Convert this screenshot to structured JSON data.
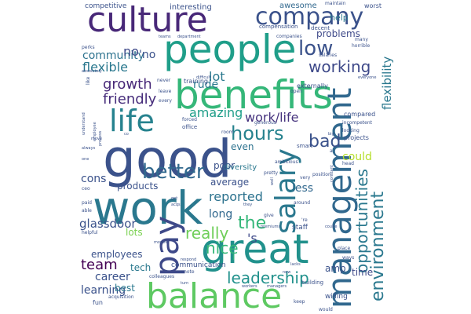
{
  "words": [
    {
      "text": "good",
      "weight": 1.0,
      "color": "#3b528b"
    },
    {
      "text": "work",
      "weight": 0.92,
      "color": "#2a788e"
    },
    {
      "text": "benefits",
      "weight": 0.9,
      "color": "#35b779"
    },
    {
      "text": "people",
      "weight": 0.85,
      "color": "#1f9e89"
    },
    {
      "text": "great",
      "weight": 0.85,
      "color": "#21918c"
    },
    {
      "text": "balance",
      "weight": 0.8,
      "color": "#5ec962"
    },
    {
      "text": "culture",
      "weight": 0.75,
      "color": "#482878"
    },
    {
      "text": "management",
      "weight": 0.78,
      "color": "#31688e"
    },
    {
      "text": "pay",
      "weight": 0.7,
      "color": "#3e4989"
    },
    {
      "text": "life",
      "weight": 0.65,
      "color": "#26828e"
    },
    {
      "text": "salary",
      "weight": 0.6,
      "color": "#2a788e"
    },
    {
      "text": "company",
      "weight": 0.55,
      "color": "#3b528b"
    },
    {
      "text": "better",
      "weight": 0.45,
      "color": "#31688e"
    },
    {
      "text": "environment",
      "weight": 0.42,
      "color": "#2a788e"
    },
    {
      "text": "low",
      "weight": 0.45,
      "color": "#3b528b"
    },
    {
      "text": "hours",
      "weight": 0.42,
      "color": "#26828e"
    },
    {
      "text": "opportunities",
      "weight": 0.38,
      "color": "#2a788e"
    },
    {
      "text": "bad",
      "weight": 0.35,
      "color": "#3b528b"
    },
    {
      "text": "leadership",
      "weight": 0.33,
      "color": "#21918c"
    },
    {
      "text": "the",
      "weight": 0.33,
      "color": "#35b779"
    },
    {
      "text": "really",
      "weight": 0.32,
      "color": "#6ece58"
    },
    {
      "text": "flexible",
      "weight": 0.3,
      "color": "#2a788e"
    },
    {
      "text": "growth",
      "weight": 0.3,
      "color": "#482878"
    },
    {
      "text": "working",
      "weight": 0.3,
      "color": "#3e4989"
    },
    {
      "text": "work/life",
      "weight": 0.28,
      "color": "#46337e"
    },
    {
      "text": "friendly",
      "weight": 0.28,
      "color": "#472d7b"
    },
    {
      "text": "nice",
      "weight": 0.28,
      "color": "#35b779"
    },
    {
      "text": "team",
      "weight": 0.28,
      "color": "#440154"
    },
    {
      "text": "reported",
      "weight": 0.27,
      "color": "#2c728e"
    },
    {
      "text": "amazing",
      "weight": 0.26,
      "color": "#1f9e89"
    },
    {
      "text": "flexibility",
      "weight": 0.26,
      "color": "#2a788e"
    },
    {
      "text": "career",
      "weight": 0.25,
      "color": "#3b528b"
    },
    {
      "text": "glassdoor",
      "weight": 0.25,
      "color": "#3b528b"
    },
    {
      "text": "community",
      "weight": 0.24,
      "color": "#2c728e"
    },
    {
      "text": "cons",
      "weight": 0.24,
      "color": "#3b528b"
    },
    {
      "text": "could",
      "weight": 0.22,
      "color": "#b5de2b"
    },
    {
      "text": "no",
      "weight": 0.22,
      "color": "#3e4989"
    },
    {
      "text": "lot",
      "weight": 0.22,
      "color": "#2a788e"
    },
    {
      "text": "long",
      "weight": 0.22,
      "color": "#31688e"
    },
    {
      "text": "learning",
      "weight": 0.21,
      "color": "#3b528b"
    },
    {
      "text": "employees",
      "weight": 0.2,
      "color": "#3b528b"
    },
    {
      "text": "'s",
      "weight": 0.22,
      "color": "#3e4989"
    },
    {
      "text": "less",
      "weight": 0.2,
      "color": "#31688e"
    },
    {
      "text": "time",
      "weight": 0.19,
      "color": "#3e4989"
    },
    {
      "text": "rude",
      "weight": 0.19,
      "color": "#2a788e"
    },
    {
      "text": "even",
      "weight": 0.19,
      "color": "#2c728e"
    },
    {
      "text": "poor",
      "weight": 0.19,
      "color": "#3b528b"
    },
    {
      "text": "'no",
      "weight": 0.19,
      "color": "#3b528b"
    },
    {
      "text": "problems",
      "weight": 0.16,
      "color": "#3e4989"
    },
    {
      "text": "products",
      "weight": 0.16,
      "color": "#3b528b"
    },
    {
      "text": "average",
      "weight": 0.16,
      "color": "#3b528b"
    },
    {
      "text": "help",
      "weight": 0.15,
      "color": "#2a788e"
    },
    {
      "text": "lots",
      "weight": 0.15,
      "color": "#7ad151"
    },
    {
      "text": "tech",
      "weight": 0.15,
      "color": "#2a788e"
    },
    {
      "text": "best",
      "weight": 0.14,
      "color": "#2a788e"
    },
    {
      "text": "diversity",
      "weight": 0.13,
      "color": "#2a788e"
    },
    {
      "text": "amp",
      "weight": 0.15,
      "color": "#3b528b"
    },
    {
      "text": "i",
      "weight": 0.15,
      "color": "#35b779"
    },
    {
      "text": "interesting",
      "weight": 0.12,
      "color": "#3b528b"
    },
    {
      "text": "awesome",
      "weight": 0.13,
      "color": "#31688e"
    },
    {
      "text": "competitive",
      "weight": 0.1,
      "color": "#3b528b"
    },
    {
      "text": "communication",
      "weight": 0.1,
      "color": "#3b528b"
    },
    {
      "text": "staff",
      "weight": 0.1,
      "color": "#3b528b"
    },
    {
      "text": "willing",
      "weight": 0.1,
      "color": "#3b528b"
    },
    {
      "text": "fun",
      "weight": 0.09,
      "color": "#3b528b"
    },
    {
      "text": "worst",
      "weight": 0.08,
      "color": "#3b528b"
    },
    {
      "text": "training",
      "weight": 0.08,
      "color": "#3b528b"
    },
    {
      "text": "externally",
      "weight": 0.08,
      "color": "#3b528b"
    },
    {
      "text": "projects",
      "weight": 0.08,
      "color": "#3b528b"
    },
    {
      "text": "compared",
      "weight": 0.08,
      "color": "#3b528b"
    },
    {
      "text": "building",
      "weight": 0.07,
      "color": "#3b528b"
    },
    {
      "text": "maintain",
      "weight": 0.06,
      "color": "#3b528b"
    },
    {
      "text": "compensation",
      "weight": 0.07,
      "color": "#3b528b"
    },
    {
      "text": "decent",
      "weight": 0.07,
      "color": "#3b528b"
    },
    {
      "text": "companies",
      "weight": 0.06,
      "color": "#3b528b"
    },
    {
      "text": "horrible",
      "weight": 0.06,
      "color": "#3b528b"
    },
    {
      "text": "salaries",
      "weight": 0.06,
      "color": "#3b528b"
    },
    {
      "text": "perks",
      "weight": 0.06,
      "color": "#3b528b"
    },
    {
      "text": "teams",
      "weight": 0.05,
      "color": "#3b528b"
    },
    {
      "text": "department",
      "weight": 0.05,
      "color": "#3b528b"
    },
    {
      "text": "many",
      "weight": 0.06,
      "color": "#3b528b"
    },
    {
      "text": "absolutely",
      "weight": 0.05,
      "color": "#3b528b"
    },
    {
      "text": "like",
      "weight": 0.06,
      "color": "#3b528b"
    },
    {
      "text": "never",
      "weight": 0.05,
      "color": "#3b528b"
    },
    {
      "text": "difficult",
      "weight": 0.05,
      "color": "#3b528b"
    },
    {
      "text": "everyone",
      "weight": 0.05,
      "color": "#3b528b"
    },
    {
      "text": "open",
      "weight": 0.05,
      "color": "#3b528b"
    },
    {
      "text": "leave",
      "weight": 0.05,
      "color": "#3b528b"
    },
    {
      "text": "every",
      "weight": 0.05,
      "color": "#3b528b"
    },
    {
      "text": "generous",
      "weight": 0.05,
      "color": "#3b528b"
    },
    {
      "text": "incompetent",
      "weight": 0.05,
      "color": "#3b528b"
    },
    {
      "text": "office",
      "weight": 0.06,
      "color": "#3b528b"
    },
    {
      "text": "forced",
      "weight": 0.05,
      "color": "#3b528b"
    },
    {
      "text": "smart",
      "weight": 0.06,
      "color": "#3b528b"
    },
    {
      "text": "looking",
      "weight": 0.05,
      "color": "#3b528b"
    },
    {
      "text": "ambitious",
      "weight": 0.05,
      "color": "#3b528b"
    },
    {
      "text": "room",
      "weight": 0.05,
      "color": "#3b528b"
    },
    {
      "text": "position",
      "weight": 0.05,
      "color": "#3b528b"
    },
    {
      "text": "head",
      "weight": 0.05,
      "color": "#3b528b"
    },
    {
      "text": "pretty",
      "weight": 0.05,
      "color": "#3b528b"
    },
    {
      "text": "very",
      "weight": 0.05,
      "color": "#3b528b"
    },
    {
      "text": "around",
      "weight": 0.05,
      "color": "#3b528b"
    },
    {
      "text": "paid",
      "weight": 0.05,
      "color": "#3b528b"
    },
    {
      "text": "able",
      "weight": 0.05,
      "color": "#3b528b"
    },
    {
      "text": "helpful",
      "weight": 0.05,
      "color": "#3b528b"
    },
    {
      "text": "acqs",
      "weight": 0.04,
      "color": "#3b528b"
    },
    {
      "text": "give",
      "weight": 0.05,
      "color": "#3b528b"
    },
    {
      "text": "premiums",
      "weight": 0.04,
      "color": "#3b528b"
    },
    {
      "text": "coulte",
      "weight": 0.04,
      "color": "#3b528b"
    },
    {
      "text": "morale",
      "weight": 0.04,
      "color": "#3b528b"
    },
    {
      "text": "respond",
      "weight": 0.04,
      "color": "#3b528b"
    },
    {
      "text": "remote",
      "weight": 0.05,
      "color": "#3b528b"
    },
    {
      "text": "lacks",
      "weight": 0.04,
      "color": "#3b528b"
    },
    {
      "text": "place",
      "weight": 0.05,
      "color": "#3b528b"
    },
    {
      "text": "ways",
      "weight": 0.05,
      "color": "#3b528b"
    },
    {
      "text": "colleagues",
      "weight": 0.05,
      "color": "#3b528b"
    },
    {
      "text": "turn",
      "weight": 0.04,
      "color": "#3b528b"
    },
    {
      "text": "new",
      "weight": 0.04,
      "color": "#3b528b"
    },
    {
      "text": "workers",
      "weight": 0.04,
      "color": "#3b528b"
    },
    {
      "text": "managers",
      "weight": 0.04,
      "color": "#3b528b"
    },
    {
      "text": "keep",
      "weight": 0.05,
      "color": "#3b528b"
    },
    {
      "text": "would",
      "weight": 0.05,
      "color": "#3b528b"
    },
    {
      "text": "acquisition",
      "weight": 0.05,
      "color": "#3b528b"
    },
    {
      "text": "ceo",
      "weight": 0.05,
      "color": "#3b528b"
    },
    {
      "text": "understand",
      "weight": 0.04,
      "color": "#3b528b"
    },
    {
      "text": "employee",
      "weight": 0.04,
      "color": "#3b528b"
    },
    {
      "text": "process",
      "weight": 0.04,
      "color": "#3b528b"
    },
    {
      "text": "move",
      "weight": 0.04,
      "color": "#3b528b"
    },
    {
      "text": "always",
      "weight": 0.04,
      "color": "#3b528b"
    },
    {
      "text": "constant",
      "weight": 0.04,
      "color": "#3b528b"
    },
    {
      "text": "one",
      "weight": 0.04,
      "color": "#3b528b"
    },
    {
      "text": "big",
      "weight": 0.04,
      "color": "#3b528b"
    },
    {
      "text": "well",
      "weight": 0.04,
      "color": "#3b528b"
    },
    {
      "text": "they",
      "weight": 0.04,
      "color": "#3b528b"
    },
    {
      "text": "get",
      "weight": 0.04,
      "color": "#3b528b"
    },
    {
      "text": "'re",
      "weight": 0.05,
      "color": "#3b528b"
    },
    {
      "text": "a",
      "weight": 0.05,
      "color": "#3b528b"
    },
    {
      "text": "co",
      "weight": 0.04,
      "color": "#3b528b"
    }
  ]
}
